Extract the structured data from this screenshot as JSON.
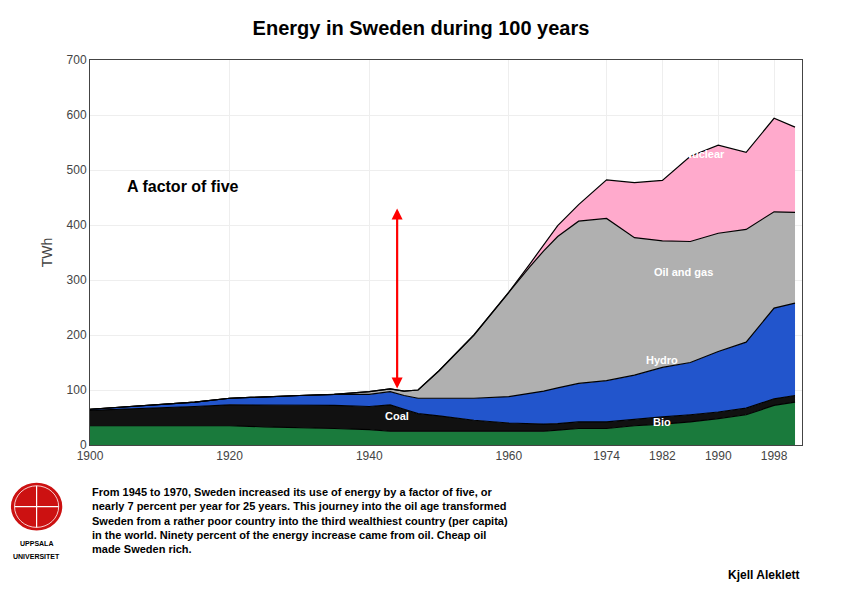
{
  "chart_data": {
    "type": "area",
    "stacked": true,
    "title": "Energy in Sweden during 100 years",
    "ylabel": "TWh",
    "x": [
      1900,
      1905,
      1910,
      1915,
      1920,
      1925,
      1930,
      1935,
      1940,
      1943,
      1945,
      1947,
      1950,
      1955,
      1960,
      1963,
      1965,
      1967,
      1970,
      1974,
      1978,
      1982,
      1986,
      1990,
      1994,
      1998,
      2001
    ],
    "series": [
      {
        "name": "Bio",
        "color": "#1a7a3c",
        "values": [
          35,
          35,
          35,
          35,
          35,
          33,
          32,
          30,
          28,
          25,
          25,
          25,
          25,
          25,
          25,
          25,
          25,
          27,
          30,
          30,
          35,
          38,
          42,
          48,
          55,
          72,
          78
        ]
      },
      {
        "name": "Coal",
        "color": "#111111",
        "values": [
          28,
          30,
          32,
          35,
          38,
          40,
          40,
          42,
          42,
          48,
          40,
          32,
          28,
          20,
          15,
          14,
          13,
          12,
          12,
          12,
          12,
          13,
          13,
          12,
          12,
          12,
          12
        ]
      },
      {
        "name": "Hydro",
        "color": "#2255cc",
        "values": [
          2,
          4,
          6,
          8,
          12,
          15,
          18,
          20,
          22,
          24,
          25,
          28,
          32,
          40,
          48,
          55,
          60,
          65,
          70,
          75,
          80,
          90,
          95,
          110,
          120,
          165,
          168
        ]
      },
      {
        "name": "Oil and gas",
        "color": "#b0b0b0",
        "values": [
          0,
          0,
          0,
          0,
          0,
          0,
          0,
          0,
          5,
          5,
          8,
          15,
          50,
          115,
          190,
          230,
          255,
          275,
          295,
          295,
          250,
          230,
          220,
          215,
          205,
          175,
          165
        ]
      },
      {
        "name": "Nuclear",
        "color": "#ffaacc",
        "values": [
          0,
          0,
          0,
          0,
          0,
          0,
          0,
          0,
          0,
          0,
          0,
          0,
          0,
          0,
          0,
          5,
          10,
          20,
          30,
          70,
          100,
          110,
          155,
          160,
          140,
          170,
          155
        ]
      }
    ],
    "xlim": [
      1900,
      2002
    ],
    "xticks": [
      1900,
      1920,
      1940,
      1960,
      1974,
      1982,
      1990,
      1998
    ],
    "ylim": [
      0,
      700
    ],
    "yticks": [
      0,
      100,
      200,
      300,
      400,
      500,
      600,
      700
    ],
    "grid": true,
    "annotations": [
      {
        "text": "Nuclear",
        "x": 1988,
        "y": 530
      },
      {
        "text": "Oil and gas",
        "x": 1985,
        "y": 315
      },
      {
        "text": "Hydro",
        "x": 1982,
        "y": 155
      },
      {
        "text": "Bio",
        "x": 1982,
        "y": 42
      },
      {
        "text": "Coal",
        "x": 1944,
        "y": 52
      },
      {
        "text": "A factor of five",
        "x": 1905,
        "y": 470
      }
    ],
    "arrows": [
      {
        "x": 1944,
        "y_from": 100,
        "y_to": 430,
        "color": "red"
      }
    ],
    "body_text": [
      "From 1945 to 1970, Sweden increased its use of energy by a factor of five, or",
      "nearly 7 percent per year for 25 years. This journey into the oil age transformed",
      "Sweden from a rather poor country into the third wealthiest country (per capita)",
      "in the world. Ninety percent of the energy increase came from oil. Cheap oil",
      "made Sweden rich."
    ],
    "author": "Kjell Aleklett",
    "logo_text": [
      "UPPSALA",
      "UNIVERSITET"
    ]
  }
}
